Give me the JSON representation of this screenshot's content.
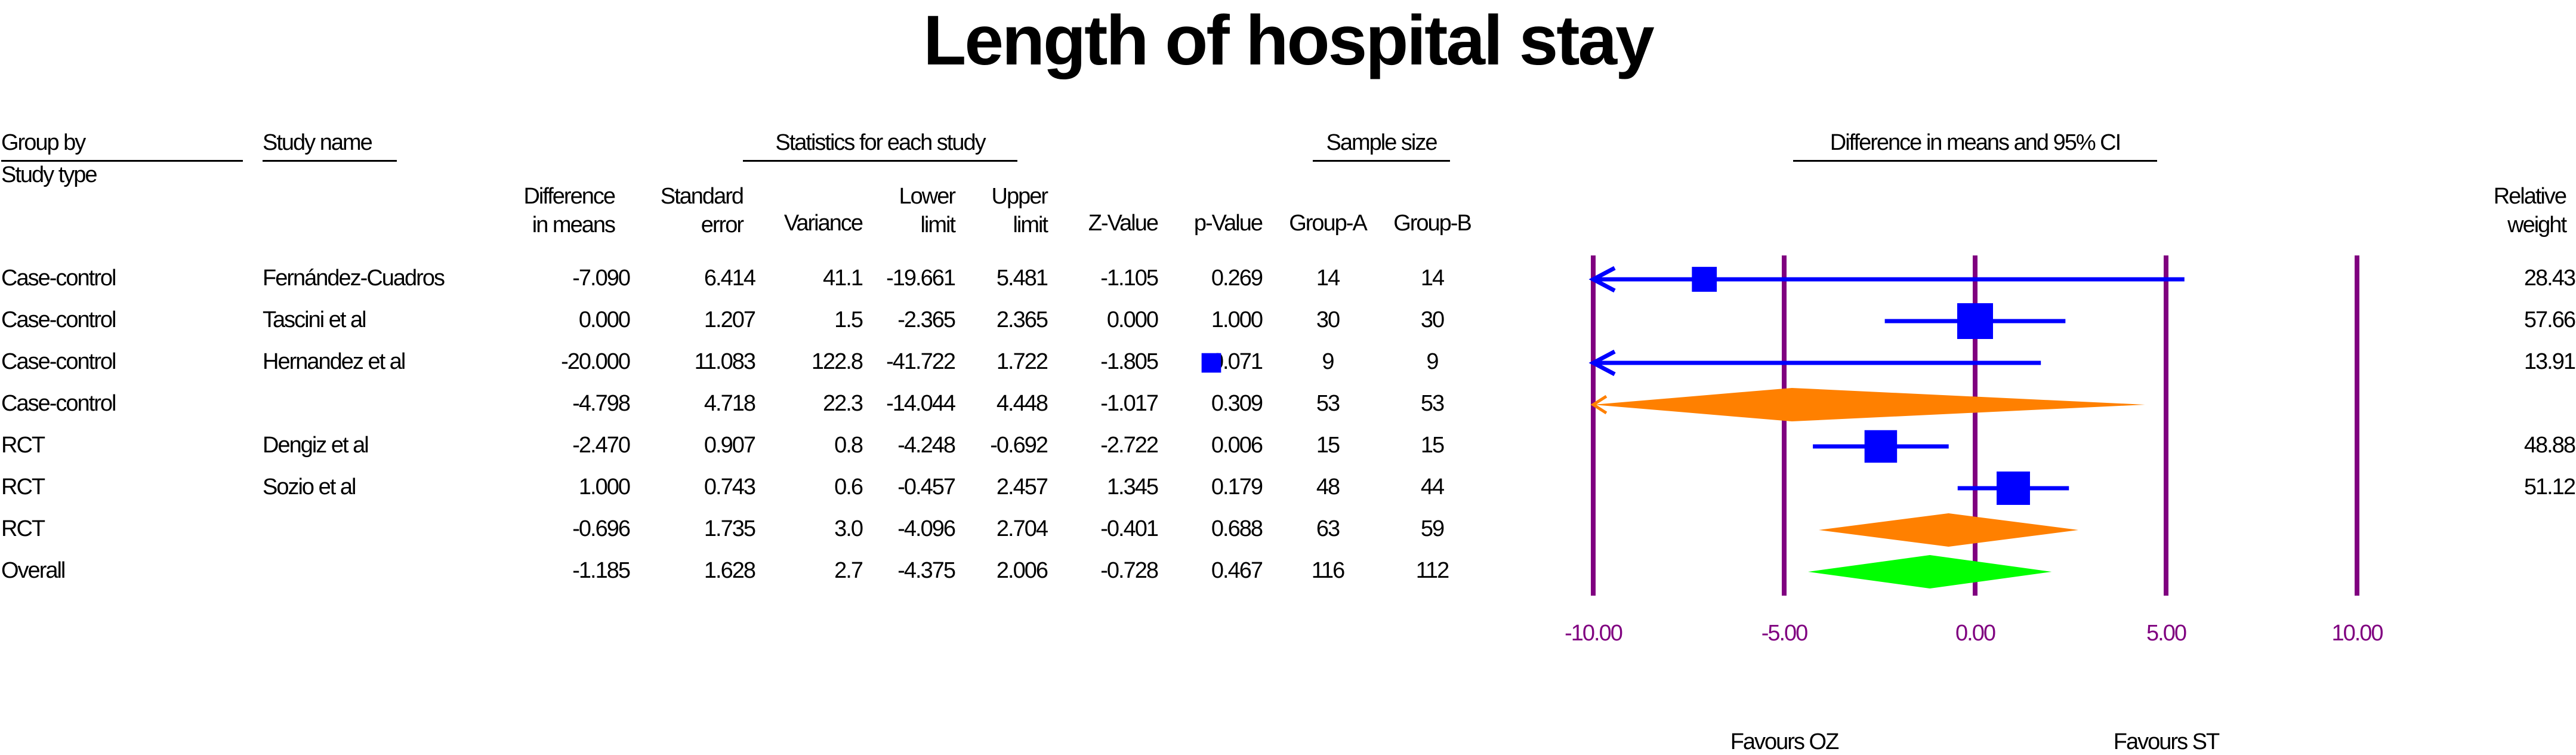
{
  "title": "Length of hospital stay",
  "headers": {
    "group_by": "Group by",
    "study_type": "Study type",
    "study_name": "Study name",
    "stats_group": "Statistics for each study",
    "sample_group": "Sample size",
    "ci_group": "Difference in means and 95% CI",
    "col_diff": [
      "Difference",
      "in means"
    ],
    "col_se": [
      "Standard",
      "error"
    ],
    "col_var": "Variance",
    "col_lower": [
      "Lower",
      "limit"
    ],
    "col_upper": [
      "Upper",
      "limit"
    ],
    "col_z": "Z-Value",
    "col_p": "p-Value",
    "col_ga": "Group-A",
    "col_gb": "Group-B",
    "col_weight": [
      "Relative",
      "weight"
    ]
  },
  "rows": [
    {
      "group": "Case-control",
      "study": "Fernández-Cuadros",
      "diff": "-7.090",
      "se": "6.414",
      "var": "41.1",
      "lower": "-19.661",
      "upper": "5.481",
      "z": "-1.105",
      "p": "0.269",
      "ga": "14",
      "gb": "14",
      "weight": "28.43"
    },
    {
      "group": "Case-control",
      "study": "Tascini et al",
      "diff": "0.000",
      "se": "1.207",
      "var": "1.5",
      "lower": "-2.365",
      "upper": "2.365",
      "z": "0.000",
      "p": "1.000",
      "ga": "30",
      "gb": "30",
      "weight": "57.66"
    },
    {
      "group": "Case-control",
      "study": "Hernandez et al",
      "diff": "-20.000",
      "se": "11.083",
      "var": "122.8",
      "lower": "-41.722",
      "upper": "1.722",
      "z": "-1.805",
      "p": "0.071",
      "ga": "9",
      "gb": "9",
      "weight": "13.91"
    },
    {
      "group": "Case-control",
      "study": "",
      "diff": "-4.798",
      "se": "4.718",
      "var": "22.3",
      "lower": "-14.044",
      "upper": "4.448",
      "z": "-1.017",
      "p": "0.309",
      "ga": "53",
      "gb": "53",
      "weight": ""
    },
    {
      "group": "RCT",
      "study": "Dengiz et al",
      "diff": "-2.470",
      "se": "0.907",
      "var": "0.8",
      "lower": "-4.248",
      "upper": "-0.692",
      "z": "-2.722",
      "p": "0.006",
      "ga": "15",
      "gb": "15",
      "weight": "48.88"
    },
    {
      "group": "RCT",
      "study": "Sozio et al",
      "diff": "1.000",
      "se": "0.743",
      "var": "0.6",
      "lower": "-0.457",
      "upper": "2.457",
      "z": "1.345",
      "p": "0.179",
      "ga": "48",
      "gb": "44",
      "weight": "51.12"
    },
    {
      "group": "RCT",
      "study": "",
      "diff": "-0.696",
      "se": "1.735",
      "var": "3.0",
      "lower": "-4.096",
      "upper": "2.704",
      "z": "-0.401",
      "p": "0.688",
      "ga": "63",
      "gb": "59",
      "weight": ""
    },
    {
      "group": "Overall",
      "study": "",
      "diff": "-1.185",
      "se": "1.628",
      "var": "2.7",
      "lower": "-4.375",
      "upper": "2.006",
      "z": "-0.728",
      "p": "0.467",
      "ga": "116",
      "gb": "112",
      "weight": ""
    }
  ],
  "chart_data": {
    "type": "forest",
    "title": "Length of hospital stay",
    "xlim": [
      -10,
      10
    ],
    "xticks": [
      "-10.00",
      "-5.00",
      "0.00",
      "5.00",
      "10.00"
    ],
    "tick_values": [
      -10,
      -5,
      0,
      5,
      10
    ],
    "favours_left": "Favours OZ",
    "favours_right": "Favours ST",
    "colors": {
      "study": "#0000ff",
      "subgroup": "#ff8000",
      "overall": "#00ff00",
      "gridline": "#800080",
      "axis_label": "#800080"
    },
    "items": [
      {
        "kind": "study",
        "est": -7.09,
        "lower": -19.661,
        "upper": 5.481,
        "weight": 28.43
      },
      {
        "kind": "study",
        "est": 0.0,
        "lower": -2.365,
        "upper": 2.365,
        "weight": 57.66
      },
      {
        "kind": "study",
        "est": -20.0,
        "lower": -41.722,
        "upper": 1.722,
        "weight": 13.91
      },
      {
        "kind": "subgroup",
        "est": -4.798,
        "lower": -14.044,
        "upper": 4.448
      },
      {
        "kind": "study",
        "est": -2.47,
        "lower": -4.248,
        "upper": -0.692,
        "weight": 48.88
      },
      {
        "kind": "study",
        "est": 1.0,
        "lower": -0.457,
        "upper": 2.457,
        "weight": 51.12
      },
      {
        "kind": "subgroup",
        "est": -0.696,
        "lower": -4.096,
        "upper": 2.704
      },
      {
        "kind": "overall",
        "est": -1.185,
        "lower": -4.375,
        "upper": 2.006
      }
    ]
  }
}
